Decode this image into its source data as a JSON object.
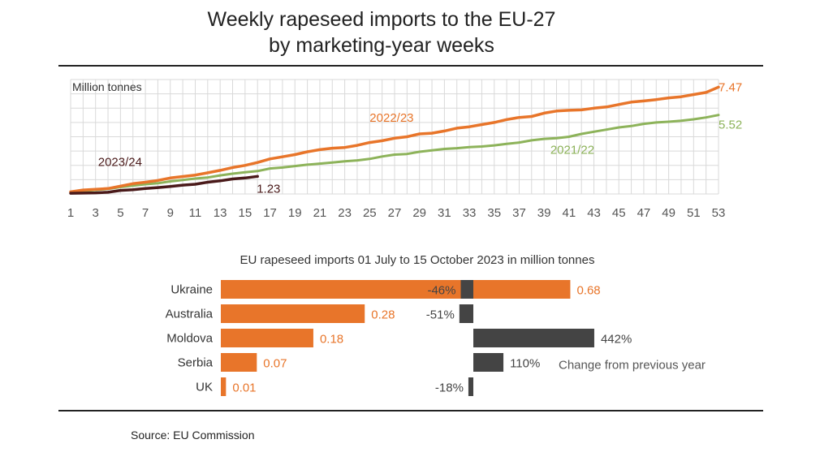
{
  "title": {
    "line1": "Weekly rapeseed imports to the EU-27",
    "line2": "by marketing-year weeks"
  },
  "source": "Source:  EU Commission",
  "colors": {
    "s2022": "#e8752a",
    "s2021": "#8db35a",
    "s2023": "#4a1a1a",
    "bar": "#e8752a",
    "change": "#444444",
    "grid": "#d9d9d9"
  },
  "chart_data": [
    {
      "type": "line",
      "ylabel": "Million tonnes",
      "xlim": [
        1,
        53
      ],
      "ylim": [
        0,
        8
      ],
      "x_ticks": [
        "1",
        "3",
        "5",
        "7",
        "9",
        "11",
        "13",
        "15",
        "17",
        "19",
        "21",
        "23",
        "25",
        "27",
        "29",
        "31",
        "33",
        "35",
        "37",
        "39",
        "41",
        "43",
        "45",
        "47",
        "49",
        "51",
        "53"
      ],
      "series": [
        {
          "name": "2022/23",
          "end_label": "7.47",
          "x": [
            1,
            2,
            3,
            4,
            5,
            6,
            7,
            8,
            9,
            10,
            11,
            12,
            13,
            14,
            15,
            16,
            17,
            18,
            19,
            20,
            21,
            22,
            23,
            24,
            25,
            26,
            27,
            28,
            29,
            30,
            31,
            32,
            33,
            34,
            35,
            36,
            37,
            38,
            39,
            40,
            41,
            42,
            43,
            44,
            45,
            46,
            47,
            48,
            49,
            50,
            51,
            52,
            53
          ],
          "y": [
            0.15,
            0.28,
            0.33,
            0.38,
            0.55,
            0.72,
            0.82,
            0.95,
            1.12,
            1.22,
            1.32,
            1.48,
            1.65,
            1.85,
            2.0,
            2.2,
            2.45,
            2.6,
            2.75,
            2.95,
            3.1,
            3.2,
            3.25,
            3.4,
            3.6,
            3.72,
            3.9,
            4.0,
            4.2,
            4.25,
            4.4,
            4.6,
            4.7,
            4.85,
            5.0,
            5.2,
            5.35,
            5.42,
            5.65,
            5.8,
            5.85,
            5.88,
            6.0,
            6.08,
            6.25,
            6.42,
            6.5,
            6.6,
            6.72,
            6.8,
            6.95,
            7.1,
            7.47
          ]
        },
        {
          "name": "2021/22",
          "end_label": "5.52",
          "x": [
            1,
            2,
            3,
            4,
            5,
            6,
            7,
            8,
            9,
            10,
            11,
            12,
            13,
            14,
            15,
            16,
            17,
            18,
            19,
            20,
            21,
            22,
            23,
            24,
            25,
            26,
            27,
            28,
            29,
            30,
            31,
            32,
            33,
            34,
            35,
            36,
            37,
            38,
            39,
            40,
            41,
            42,
            43,
            44,
            45,
            46,
            47,
            48,
            49,
            50,
            51,
            52,
            53
          ],
          "y": [
            0.12,
            0.22,
            0.28,
            0.35,
            0.48,
            0.58,
            0.68,
            0.75,
            0.88,
            0.98,
            1.08,
            1.15,
            1.3,
            1.42,
            1.52,
            1.6,
            1.78,
            1.85,
            1.95,
            2.05,
            2.12,
            2.2,
            2.28,
            2.35,
            2.45,
            2.62,
            2.75,
            2.8,
            2.95,
            3.05,
            3.15,
            3.2,
            3.28,
            3.32,
            3.4,
            3.5,
            3.6,
            3.75,
            3.85,
            3.9,
            4.0,
            4.2,
            4.35,
            4.5,
            4.65,
            4.75,
            4.9,
            5.0,
            5.05,
            5.12,
            5.22,
            5.35,
            5.52
          ]
        },
        {
          "name": "2023/24",
          "end_label": "1.23",
          "x": [
            1,
            2,
            3,
            4,
            5,
            6,
            7,
            8,
            9,
            10,
            11,
            12,
            13,
            14,
            15,
            16
          ],
          "y": [
            0.05,
            0.06,
            0.08,
            0.12,
            0.25,
            0.3,
            0.38,
            0.45,
            0.52,
            0.62,
            0.68,
            0.82,
            0.92,
            1.05,
            1.12,
            1.23
          ]
        }
      ]
    },
    {
      "type": "bar",
      "title": "EU rapeseed imports 01 July to 15 October 2023 in million tonnes",
      "categories": [
        "Ukraine",
        "Australia",
        "Moldova",
        "Serbia",
        "UK"
      ],
      "values": [
        0.68,
        0.28,
        0.18,
        0.07,
        0.01
      ],
      "value_labels": [
        "0.68",
        "0.28",
        "0.18",
        "0.07",
        "0.01"
      ],
      "change_percent": [
        -46,
        -51,
        442,
        110,
        -18
      ],
      "change_labels": [
        "-46%",
        "-51%",
        "442%",
        "110%",
        "-18%"
      ],
      "change_legend": "Change from previous year"
    }
  ]
}
